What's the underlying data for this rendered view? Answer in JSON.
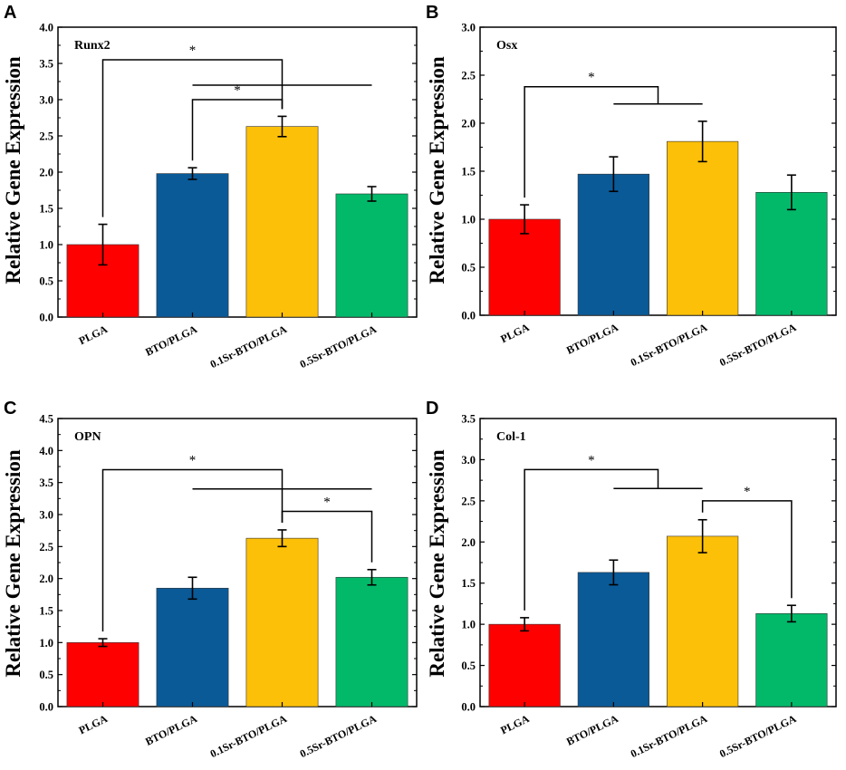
{
  "chart_data": [
    {
      "panel": "A",
      "type": "bar",
      "title": "Runx2",
      "ylabel": "Relative Gene Expression",
      "xlabel": "",
      "categories": [
        "PLGA",
        "BTO/PLGA",
        "0.1Sr-BTO/PLGA",
        "0.5Sr-BTO/PLGA"
      ],
      "values": [
        1.0,
        1.98,
        2.63,
        1.7
      ],
      "errors": [
        0.28,
        0.08,
        0.14,
        0.1
      ],
      "ylim": [
        0,
        4.0
      ],
      "yticks": [
        "0.0",
        "0.5",
        "1.0",
        "1.5",
        "2.0",
        "2.5",
        "3.0",
        "3.5",
        "4.0"
      ],
      "colors": [
        "#ff0000",
        "#0a5a98",
        "#fdc008",
        "#02b96a"
      ],
      "significance": [
        {
          "kind": "pair",
          "from": 0,
          "to": 2,
          "level": 3.55,
          "label": "*"
        },
        {
          "kind": "pair",
          "from": 1,
          "to": 2,
          "level": 3.0,
          "label": "*"
        },
        {
          "kind": "line",
          "from": 1,
          "to": 3,
          "level": 3.2
        }
      ]
    },
    {
      "panel": "B",
      "type": "bar",
      "title": "Osx",
      "ylabel": "Relative Gene Expression",
      "xlabel": "",
      "categories": [
        "PLGA",
        "BTO/PLGA",
        "0.1Sr-BTO/PLGA",
        "0.5Sr-BTO/PLGA"
      ],
      "values": [
        1.0,
        1.47,
        1.81,
        1.28
      ],
      "errors": [
        0.15,
        0.18,
        0.21,
        0.18
      ],
      "ylim": [
        0,
        3.0
      ],
      "yticks": [
        "0.0",
        "0.5",
        "1.0",
        "1.5",
        "2.0",
        "2.5",
        "3.0"
      ],
      "colors": [
        "#ff0000",
        "#0a5a98",
        "#fdc008",
        "#02b96a"
      ],
      "significance": [
        {
          "kind": "group",
          "from": 0,
          "level": 2.38,
          "gfrom": 1,
          "gto": 2,
          "glevel": 2.2,
          "label": "*"
        }
      ]
    },
    {
      "panel": "C",
      "type": "bar",
      "title": "OPN",
      "ylabel": "Relative Gene Expression",
      "xlabel": "",
      "categories": [
        "PLGA",
        "BTO/PLGA",
        "0.1Sr-BTO/PLGA",
        "0.5Sr-BTO/PLGA"
      ],
      "values": [
        1.0,
        1.85,
        2.63,
        2.02
      ],
      "errors": [
        0.06,
        0.17,
        0.13,
        0.12
      ],
      "ylim": [
        0,
        4.5
      ],
      "yticks": [
        "0.0",
        "0.5",
        "1.0",
        "1.5",
        "2.0",
        "2.5",
        "3.0",
        "3.5",
        "4.0",
        "4.5"
      ],
      "colors": [
        "#ff0000",
        "#0a5a98",
        "#fdc008",
        "#02b96a"
      ],
      "significance": [
        {
          "kind": "pair",
          "from": 0,
          "to": 2,
          "level": 3.7,
          "label": "*"
        },
        {
          "kind": "line",
          "from": 1,
          "to": 3,
          "level": 3.4
        },
        {
          "kind": "pair",
          "from": 2,
          "to": 3,
          "level": 3.05,
          "label": "*"
        }
      ]
    },
    {
      "panel": "D",
      "type": "bar",
      "title": "Col-1",
      "ylabel": "Relative Gene Expression",
      "xlabel": "",
      "categories": [
        "PLGA",
        "BTO/PLGA",
        "0.1Sr-BTO/PLGA",
        "0.5Sr-BTO/PLGA"
      ],
      "values": [
        1.0,
        1.63,
        2.07,
        1.13
      ],
      "errors": [
        0.08,
        0.15,
        0.2,
        0.1
      ],
      "ylim": [
        0,
        3.5
      ],
      "yticks": [
        "0.0",
        "0.5",
        "1.0",
        "1.5",
        "2.0",
        "2.5",
        "3.0",
        "3.5"
      ],
      "colors": [
        "#ff0000",
        "#0a5a98",
        "#fdc008",
        "#02b96a"
      ],
      "significance": [
        {
          "kind": "group",
          "from": 0,
          "level": 2.88,
          "gfrom": 1,
          "gto": 2,
          "glevel": 2.65,
          "label": "*"
        },
        {
          "kind": "pair",
          "from": 2,
          "to": 3,
          "level": 2.5,
          "label": "*"
        }
      ]
    }
  ]
}
